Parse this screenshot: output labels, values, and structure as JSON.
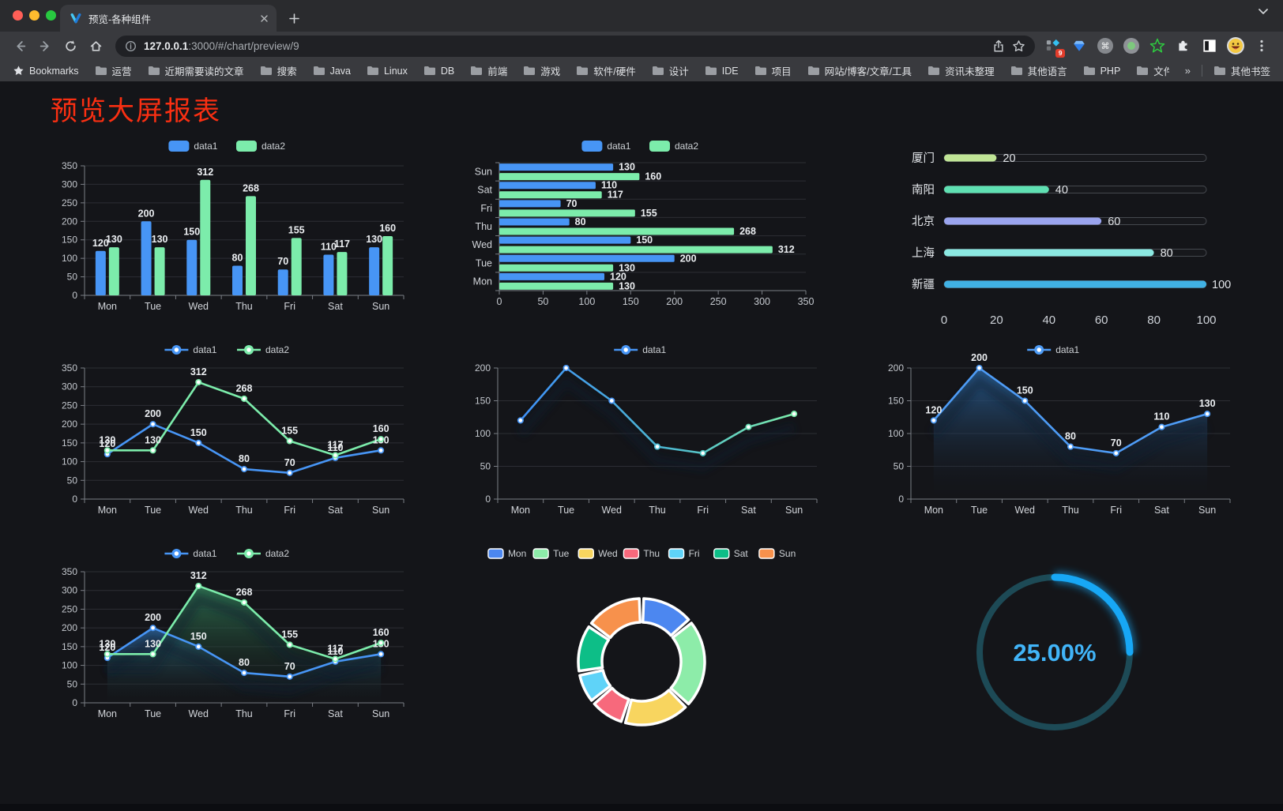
{
  "browser": {
    "tab_title": "预览-各种组件",
    "url_host": "127.0.0.1",
    "url_path": ":3000/#/chart/preview/9",
    "bookmarks_label": "Bookmarks",
    "bookmark_folders": [
      "运营",
      "近期需要读的文章",
      "搜索",
      "Java",
      "Linux",
      "DB",
      "前端",
      "游戏",
      "软件/硬件",
      "设计",
      "IDE",
      "项目",
      "网站/博客/文章/工具",
      "资讯未整理",
      "其他语言",
      "PHP",
      "文件服务器"
    ],
    "overflow_chevron": "»",
    "other_bookmarks": "其他书签",
    "extension_badge": "9"
  },
  "page": {
    "title": "预览大屏报表",
    "title_color": "#fa2f12"
  },
  "chart_data": [
    {
      "type": "bar",
      "categories": [
        "Mon",
        "Tue",
        "Wed",
        "Thu",
        "Fri",
        "Sat",
        "Sun"
      ],
      "series": [
        {
          "name": "data1",
          "color": "#4795f5",
          "values": [
            120,
            200,
            150,
            80,
            70,
            110,
            130
          ]
        },
        {
          "name": "data2",
          "color": "#7cecab",
          "values": [
            130,
            130,
            312,
            268,
            155,
            117,
            160
          ]
        }
      ],
      "ylim": [
        0,
        350
      ],
      "ystep": 50,
      "value_labels": true,
      "legend": "rect"
    },
    {
      "type": "hbar",
      "categories": [
        "Mon",
        "Tue",
        "Wed",
        "Thu",
        "Fri",
        "Sat",
        "Sun"
      ],
      "series": [
        {
          "name": "data1",
          "color": "#4795f5",
          "values": [
            120,
            200,
            150,
            80,
            70,
            110,
            130
          ]
        },
        {
          "name": "data2",
          "color": "#7cecab",
          "values": [
            130,
            130,
            312,
            268,
            155,
            117,
            160
          ]
        }
      ],
      "xlim": [
        0,
        350
      ],
      "xstep": 50,
      "value_labels": true,
      "legend": "rect"
    },
    {
      "type": "progress",
      "items": [
        {
          "label": "厦门",
          "value": 20,
          "color": "#c0e596"
        },
        {
          "label": "南阳",
          "value": 40,
          "color": "#5fe0b2"
        },
        {
          "label": "北京",
          "value": 60,
          "color": "#9aa4ee"
        },
        {
          "label": "上海",
          "value": 80,
          "color": "#8be8e1"
        },
        {
          "label": "新疆",
          "value": 100,
          "color": "#40b1e4"
        }
      ],
      "max": 100,
      "xticks": [
        0,
        20,
        40,
        60,
        80,
        100
      ]
    },
    {
      "type": "line",
      "categories": [
        "Mon",
        "Tue",
        "Wed",
        "Thu",
        "Fri",
        "Sat",
        "Sun"
      ],
      "series": [
        {
          "name": "data1",
          "color": "#4795f5",
          "values": [
            120,
            200,
            150,
            80,
            70,
            110,
            130
          ]
        },
        {
          "name": "data2",
          "color": "#7cecab",
          "values": [
            130,
            130,
            312,
            268,
            155,
            117,
            160
          ]
        }
      ],
      "ylim": [
        0,
        350
      ],
      "ystep": 50,
      "value_labels": true,
      "legend": "line"
    },
    {
      "type": "line",
      "categories": [
        "Mon",
        "Tue",
        "Wed",
        "Thu",
        "Fri",
        "Sat",
        "Sun"
      ],
      "series": [
        {
          "name": "data1",
          "color": "#4795f5",
          "values": [
            120,
            200,
            150,
            80,
            70,
            110,
            130
          ],
          "gradient": [
            [
              "0%",
              "#3f90f8"
            ],
            [
              "55%",
              "#4db9cf"
            ],
            [
              "100%",
              "#7cecab"
            ]
          ],
          "marker_colors": [
            "#4795f5",
            "#4795f5",
            "#4795f5",
            "#4fc0d8",
            "#4fc4c0",
            "#62d8ae",
            "#7cecab"
          ]
        }
      ],
      "ylim": [
        0,
        200
      ],
      "ystep": 50,
      "value_labels": false,
      "legend": "line",
      "shadow": true
    },
    {
      "type": "area",
      "categories": [
        "Mon",
        "Tue",
        "Wed",
        "Thu",
        "Fri",
        "Sat",
        "Sun"
      ],
      "series": [
        {
          "name": "data1",
          "color": "#4e9cf6",
          "values": [
            120,
            200,
            150,
            80,
            70,
            110,
            130
          ],
          "fill": [
            "rgba(42,95,148,0.92)",
            "rgba(20,22,28,0)"
          ]
        }
      ],
      "ylim": [
        0,
        200
      ],
      "ystep": 50,
      "value_labels": true,
      "legend": "line",
      "shadow": true
    },
    {
      "type": "area",
      "categories": [
        "Mon",
        "Tue",
        "Wed",
        "Thu",
        "Fri",
        "Sat",
        "Sun"
      ],
      "series": [
        {
          "name": "data1",
          "color": "#4795f5",
          "values": [
            120,
            200,
            150,
            80,
            70,
            110,
            130
          ],
          "fill": [
            "rgba(45,100,155,0.85)",
            "rgba(20,22,28,0.04)"
          ]
        },
        {
          "name": "data2",
          "color": "#7cecab",
          "values": [
            130,
            130,
            312,
            268,
            155,
            117,
            160
          ],
          "fill": [
            "rgba(50,125,88,0.85)",
            "rgba(20,30,26,0.04)"
          ]
        }
      ],
      "ylim": [
        0,
        350
      ],
      "ystep": 50,
      "value_labels": true,
      "legend": "line",
      "shadow": true
    },
    {
      "type": "donut",
      "categories": [
        "Mon",
        "Tue",
        "Wed",
        "Thu",
        "Fri",
        "Sat",
        "Sun"
      ],
      "values": [
        120,
        200,
        150,
        80,
        70,
        110,
        130
      ],
      "colors": [
        "#4c87f0",
        "#8deca9",
        "#f8d55f",
        "#f7697c",
        "#5fd3f8",
        "#0dbe87",
        "#f7914c"
      ]
    },
    {
      "type": "gauge",
      "value": 25,
      "label": "25.00%",
      "color": "#17a7f5",
      "track_color": "#1d4a56",
      "text_color": "#41b4f8"
    }
  ]
}
